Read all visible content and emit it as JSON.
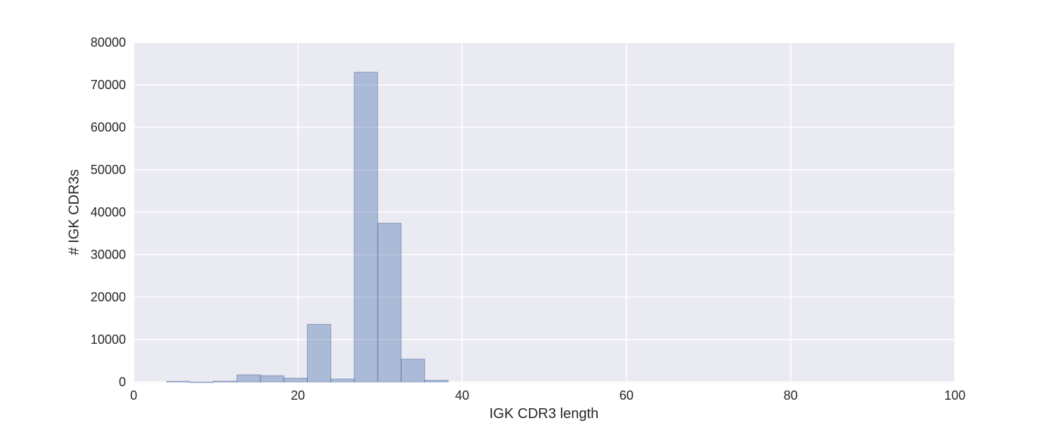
{
  "chart_data": {
    "type": "bar",
    "title": "",
    "xlabel": "IGK CDR3 length",
    "ylabel": "# IGK CDR3s",
    "xlim": [
      0,
      100
    ],
    "ylim": [
      0,
      80000
    ],
    "x_ticks": [
      0,
      20,
      40,
      60,
      80,
      100
    ],
    "y_ticks": [
      0,
      10000,
      20000,
      30000,
      40000,
      50000,
      60000,
      70000,
      80000
    ],
    "grid": true,
    "bins": [
      {
        "x0": 4.0,
        "x1": 6.86,
        "value": 150
      },
      {
        "x0": 6.86,
        "x1": 9.71,
        "value": 0
      },
      {
        "x0": 9.71,
        "x1": 12.57,
        "value": 200
      },
      {
        "x0": 12.57,
        "x1": 15.43,
        "value": 1700
      },
      {
        "x0": 15.43,
        "x1": 18.29,
        "value": 1500
      },
      {
        "x0": 18.29,
        "x1": 21.14,
        "value": 900
      },
      {
        "x0": 21.14,
        "x1": 24.0,
        "value": 13600
      },
      {
        "x0": 24.0,
        "x1": 26.86,
        "value": 700
      },
      {
        "x0": 26.86,
        "x1": 29.71,
        "value": 73000
      },
      {
        "x0": 29.71,
        "x1": 32.57,
        "value": 37400
      },
      {
        "x0": 32.57,
        "x1": 35.43,
        "value": 5400
      },
      {
        "x0": 35.43,
        "x1": 38.29,
        "value": 400
      }
    ],
    "colors": {
      "background": "#eaeaf2",
      "grid": "#ffffff",
      "bar_fill": "#4c72b0",
      "bar_fill_opacity": 0.4,
      "bar_stroke": "#3d5a8c"
    }
  }
}
